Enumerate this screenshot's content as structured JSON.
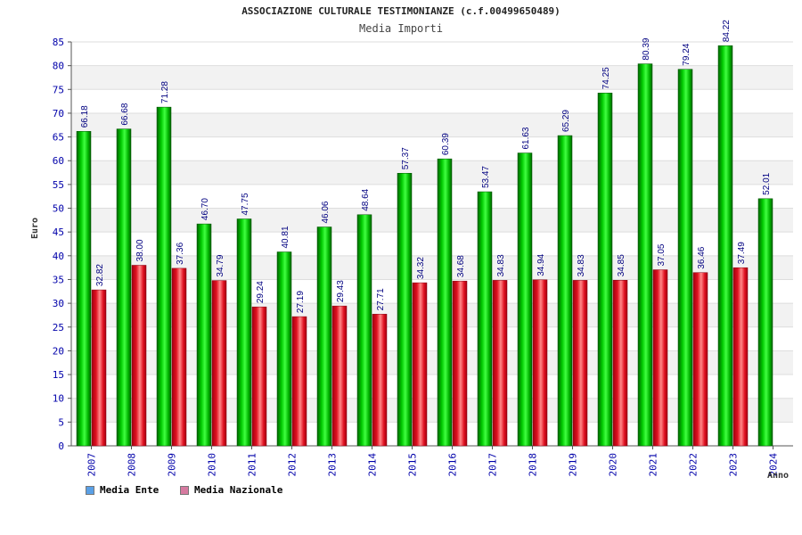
{
  "chart_data": {
    "type": "bar",
    "title": "ASSOCIAZIONE CULTURALE TESTIMONIANZE (c.f.00499650489)",
    "subtitle": "Media Importi",
    "xlabel": "Anno",
    "ylabel": "Euro",
    "ylim": [
      0,
      85
    ],
    "ytick_step": 5,
    "grid": true,
    "legend_position": "bottom-left",
    "categories": [
      "2007",
      "2008",
      "2009",
      "2010",
      "2011",
      "2012",
      "2013",
      "2014",
      "2015",
      "2016",
      "2017",
      "2018",
      "2019",
      "2020",
      "2021",
      "2022",
      "2023",
      "2024"
    ],
    "series": [
      {
        "name": "Media Ente",
        "color": "#00a000",
        "legend_color": "#5aa0e6",
        "values": [
          66.18,
          66.68,
          71.28,
          46.7,
          47.75,
          40.81,
          46.06,
          48.64,
          57.37,
          60.39,
          53.47,
          61.63,
          65.29,
          74.25,
          80.39,
          79.24,
          84.22,
          52.01
        ],
        "labels": [
          "66.18",
          "66.68",
          "71.28",
          "46.70",
          "47.75",
          "40.81",
          "46.06",
          "48.64",
          "57.37",
          "60.39",
          "53.47",
          "61.63",
          "65.29",
          "74.25",
          "80.39",
          "79.24",
          "84.22",
          "52.01"
        ]
      },
      {
        "name": "Media Nazionale",
        "color": "#e01020",
        "legend_color": "#d67aa0",
        "values": [
          32.82,
          38.0,
          37.36,
          34.79,
          29.24,
          27.19,
          29.43,
          27.71,
          34.32,
          34.68,
          34.83,
          34.94,
          34.83,
          34.85,
          37.05,
          36.46,
          37.49,
          null
        ],
        "labels": [
          "32.82",
          "38.00",
          "37.36",
          "34.79",
          "29.24",
          "27.19",
          "29.43",
          "27.71",
          "34.32",
          "34.68",
          "34.83",
          "34.94",
          "34.83",
          "34.85",
          "37.05",
          "36.46",
          "37.49",
          ""
        ]
      }
    ]
  }
}
